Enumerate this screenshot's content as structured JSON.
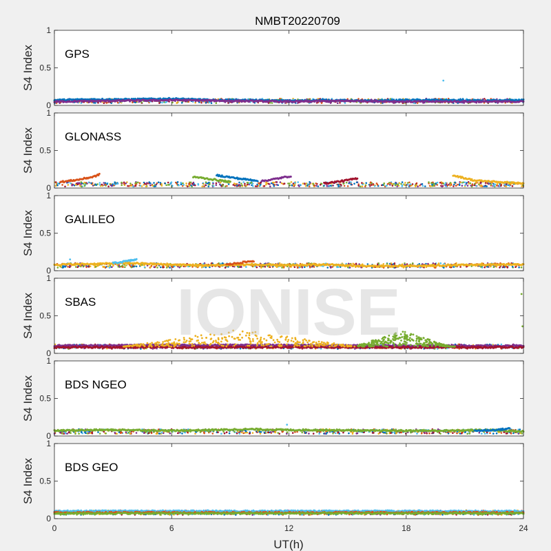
{
  "figure": {
    "title": "NMBT20220709",
    "xlabel": "UT(h)",
    "watermark": "IONISE",
    "background": "#f0f0f0"
  },
  "chart_data": {
    "type": "scatter",
    "title": "NMBT20220709",
    "xlabel": "UT(h)",
    "ylabel": "S4 Index",
    "xlim": [
      0,
      24
    ],
    "ylim": [
      0,
      1
    ],
    "xticks": [
      "0",
      "6",
      "12",
      "18",
      "24"
    ],
    "yticks": [
      "0",
      "0.5",
      "1"
    ],
    "grid": false,
    "colors": [
      "#0072BD",
      "#D95319",
      "#EDB120",
      "#7E2F8E",
      "#77AC30",
      "#4DBEEE",
      "#A2142F"
    ],
    "panels": [
      {
        "label": "GPS",
        "baseline": 0.06,
        "series_trends": [
          {
            "x": [
              0,
              2,
              4,
              6,
              8,
              10,
              12,
              14,
              16,
              18,
              20,
              22,
              24
            ],
            "y": [
              0.07,
              0.08,
              0.08,
              0.09,
              0.07,
              0.07,
              0.06,
              0.07,
              0.06,
              0.07,
              0.07,
              0.06,
              0.07
            ]
          },
          {
            "x": [
              0,
              3,
              6,
              9,
              12,
              15,
              18,
              21,
              24
            ],
            "y": [
              0.05,
              0.06,
              0.07,
              0.06,
              0.05,
              0.06,
              0.05,
              0.05,
              0.05
            ]
          }
        ],
        "outliers": [
          {
            "x": 19.9,
            "y": 0.33
          }
        ]
      },
      {
        "label": "GLONASS",
        "baseline": 0.05,
        "series_trends": [
          {
            "x": [
              0.3,
              1.2,
              2.0,
              2.3
            ],
            "y": [
              0.08,
              0.11,
              0.15,
              0.18
            ]
          },
          {
            "x": [
              7.1,
              8.5,
              9.0
            ],
            "y": [
              0.15,
              0.1,
              0.08
            ]
          },
          {
            "x": [
              8.3,
              9.6,
              10.4
            ],
            "y": [
              0.17,
              0.12,
              0.1
            ]
          },
          {
            "x": [
              10.6,
              11.5,
              12.1
            ],
            "y": [
              0.09,
              0.13,
              0.16
            ]
          },
          {
            "x": [
              13.8,
              14.9,
              15.5
            ],
            "y": [
              0.06,
              0.1,
              0.13
            ]
          },
          {
            "x": [
              20.4,
              21.5,
              24
            ],
            "y": [
              0.17,
              0.1,
              0.06
            ]
          }
        ],
        "outliers": []
      },
      {
        "label": "GALILEO",
        "baseline": 0.07,
        "series_trends": [
          {
            "x": [
              0,
              2,
              4,
              6,
              8,
              10,
              12,
              14,
              16,
              18,
              20,
              22,
              24
            ],
            "y": [
              0.08,
              0.09,
              0.1,
              0.08,
              0.07,
              0.08,
              0.07,
              0.08,
              0.06,
              0.06,
              0.07,
              0.08,
              0.08
            ]
          },
          {
            "x": [
              3.0,
              3.8,
              4.2
            ],
            "y": [
              0.1,
              0.13,
              0.15
            ]
          },
          {
            "x": [
              8.8,
              9.6,
              10.2
            ],
            "y": [
              0.08,
              0.11,
              0.13
            ]
          }
        ],
        "outliers": [
          {
            "x": 0.8,
            "y": 0.15
          }
        ]
      },
      {
        "label": "SBAS",
        "baseline": 0.09,
        "series_trends": [
          {
            "x": [
              0,
              6,
              12,
              18,
              24
            ],
            "y": [
              0.1,
              0.11,
              0.11,
              0.1,
              0.1
            ]
          },
          {
            "x": [
              0,
              6,
              12,
              18,
              24
            ],
            "y": [
              0.08,
              0.08,
              0.08,
              0.08,
              0.08
            ]
          }
        ],
        "scatter_bands": [
          {
            "name": "",
            "x_range": [
              3.5,
              15.5
            ],
            "y_peak": 0.32,
            "peak_x": 9.5
          },
          {
            "name": "",
            "x_range": [
              15.5,
              20.5
            ],
            "y_peak": 0.3,
            "peak_x": 17.8
          }
        ],
        "outliers": [
          {
            "x": 23.9,
            "y": 0.79
          },
          {
            "x": 23.95,
            "y": 0.36
          }
        ]
      },
      {
        "label": "BDS NGEO",
        "baseline": 0.06,
        "series_trends": [
          {
            "x": [
              0,
              2,
              4,
              6,
              8,
              10,
              12,
              14,
              16,
              18,
              20,
              22,
              24
            ],
            "y": [
              0.07,
              0.08,
              0.08,
              0.07,
              0.08,
              0.09,
              0.08,
              0.08,
              0.07,
              0.07,
              0.07,
              0.08,
              0.06
            ]
          },
          {
            "x": [
              21.5,
              22.6,
              23.3
            ],
            "y": [
              0.07,
              0.08,
              0.1
            ]
          }
        ],
        "outliers": [
          {
            "x": 11.9,
            "y": 0.15
          }
        ]
      },
      {
        "label": "BDS GEO",
        "baseline": 0.08,
        "series_trends": [
          {
            "x": [
              0,
              24
            ],
            "y": [
              0.1,
              0.1
            ]
          },
          {
            "x": [
              0,
              24
            ],
            "y": [
              0.08,
              0.08
            ]
          },
          {
            "x": [
              0,
              24
            ],
            "y": [
              0.07,
              0.07
            ]
          }
        ],
        "outliers": []
      }
    ]
  }
}
